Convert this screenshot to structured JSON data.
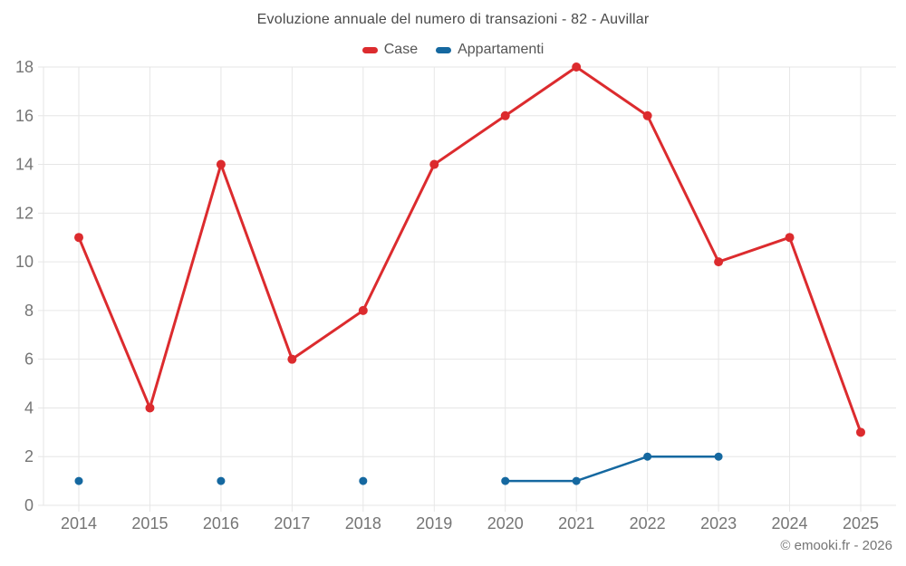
{
  "chart_data": {
    "type": "line",
    "title": "Evoluzione annuale del numero di transazioni - 82 - Auvillar",
    "categories": [
      "2014",
      "2015",
      "2016",
      "2017",
      "2018",
      "2019",
      "2020",
      "2021",
      "2022",
      "2023",
      "2024",
      "2025"
    ],
    "series": [
      {
        "name": "Case",
        "color": "#dc2b2e",
        "values": [
          11,
          4,
          14,
          6,
          8,
          14,
          16,
          18,
          16,
          10,
          11,
          3
        ]
      },
      {
        "name": "Appartamenti",
        "color": "#1568a0",
        "values": [
          1,
          null,
          1,
          null,
          1,
          null,
          1,
          1,
          2,
          2,
          null,
          null
        ]
      }
    ],
    "xlabel": "",
    "ylabel": "",
    "ylim": [
      0,
      18
    ],
    "yticks": [
      0,
      2,
      4,
      6,
      8,
      10,
      12,
      14,
      16,
      18
    ],
    "grid": true,
    "legend_position": "top",
    "grid_color": "#e6e6e6",
    "axis_text_color": "#757575",
    "title_color": "#4a4a4a",
    "copyright": "© emooki.fr - 2026"
  }
}
